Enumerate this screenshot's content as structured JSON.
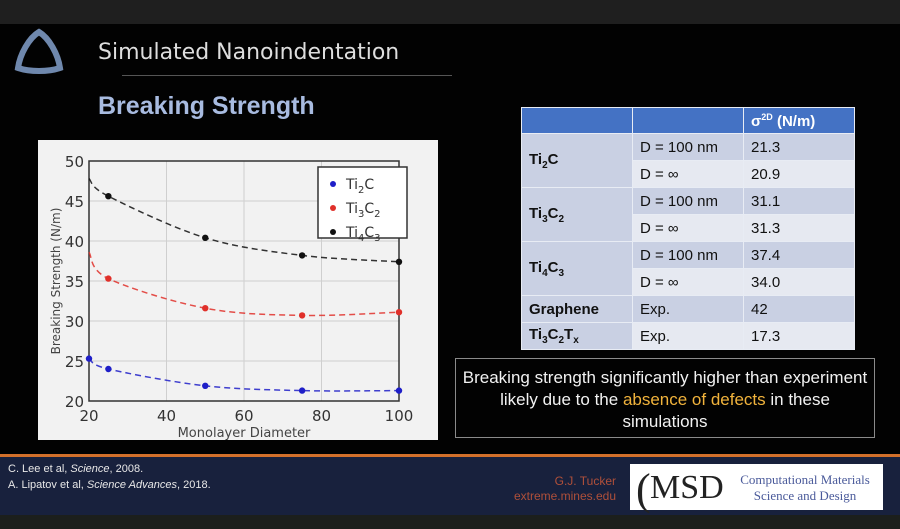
{
  "slide": {
    "title": "Simulated Nanoindentation",
    "subtitle": "Breaking Strength"
  },
  "chart_data": {
    "type": "scatter",
    "xlabel": "Monolayer Diameter",
    "ylabel": "Breaking Strength (N/m)",
    "xlim": [
      20,
      100
    ],
    "ylim": [
      20,
      50
    ],
    "xticks": [
      20,
      40,
      60,
      80,
      100
    ],
    "yticks": [
      20,
      25,
      30,
      35,
      40,
      45,
      50
    ],
    "grid": true,
    "legend": "top-right",
    "series": [
      {
        "name": "Ti2C",
        "label_parts": [
          [
            "Ti",
            ""
          ],
          [
            "2",
            "sub"
          ],
          [
            "C",
            ""
          ]
        ],
        "color": "#1f1fc8",
        "x": [
          20,
          25,
          50,
          75,
          100
        ],
        "y": [
          25.3,
          24.0,
          21.9,
          21.3,
          21.3
        ],
        "fit_at_20": 25.4
      },
      {
        "name": "Ti3C2",
        "label_parts": [
          [
            "Ti",
            ""
          ],
          [
            "3",
            "sub"
          ],
          [
            "C",
            ""
          ],
          [
            "2",
            "sub"
          ]
        ],
        "color": "#e0302a",
        "x": [
          25,
          50,
          75,
          100
        ],
        "y": [
          35.3,
          31.6,
          30.7,
          31.1
        ],
        "fit_at_20": 38.6
      },
      {
        "name": "Ti4C3",
        "label_parts": [
          [
            "Ti",
            ""
          ],
          [
            "4",
            "sub"
          ],
          [
            "C",
            ""
          ],
          [
            "3",
            "sub"
          ]
        ],
        "color": "#111111",
        "x": [
          25,
          50,
          75,
          100
        ],
        "y": [
          45.6,
          40.4,
          38.2,
          37.4
        ],
        "fit_at_20": 47.8
      }
    ]
  },
  "table": {
    "header": [
      "",
      "",
      "σ",
      "2D",
      " (N/m)"
    ],
    "rows": [
      {
        "material": [
          [
            "Ti",
            ""
          ],
          [
            "2",
            "sub"
          ],
          [
            "C",
            ""
          ]
        ],
        "cond": "D = 100 nm",
        "value": "21.3"
      },
      {
        "cond": "D = ∞",
        "value": "20.9"
      },
      {
        "material": [
          [
            "Ti",
            ""
          ],
          [
            "3",
            "sub"
          ],
          [
            "C",
            ""
          ],
          [
            "2",
            "sub"
          ]
        ],
        "cond": "D = 100 nm",
        "value": "31.1"
      },
      {
        "cond": "D = ∞",
        "value": "31.3"
      },
      {
        "material": [
          [
            "Ti",
            ""
          ],
          [
            "4",
            "sub"
          ],
          [
            "C",
            ""
          ],
          [
            "3",
            "sub"
          ]
        ],
        "cond": "D = 100 nm",
        "value": "37.4"
      },
      {
        "cond": "D = ∞",
        "value": "34.0"
      },
      {
        "material": [
          [
            "Graphene",
            ""
          ]
        ],
        "cond": "Exp.",
        "value": "42"
      },
      {
        "material": [
          [
            "Ti",
            ""
          ],
          [
            "3",
            "sub"
          ],
          [
            "C",
            ""
          ],
          [
            "2",
            "sub"
          ],
          [
            "T",
            ""
          ],
          [
            "x",
            "sub"
          ]
        ],
        "cond": "Exp.",
        "value": "17.3"
      }
    ]
  },
  "note": {
    "part1": "Breaking strength significantly higher than experiment likely due to the ",
    "highlight": "absence of defects",
    "part2": " in these simulations",
    "highlight_color": "#f1b33c"
  },
  "footer": {
    "cite1_a": "C. Lee et al, ",
    "cite1_journal": "Science",
    "cite1_b": ", 2008.",
    "cite2_a": "A. Lipatov et al, ",
    "cite2_journal": "Science Advances",
    "cite2_b": ", 2018.",
    "author": "G.J. Tucker",
    "site": "extreme.mines.edu",
    "logo_abbr": "MSD",
    "logo_line1": "Computational Materials",
    "logo_line2": "Science and Design",
    "accent_color": "#d2702b"
  }
}
